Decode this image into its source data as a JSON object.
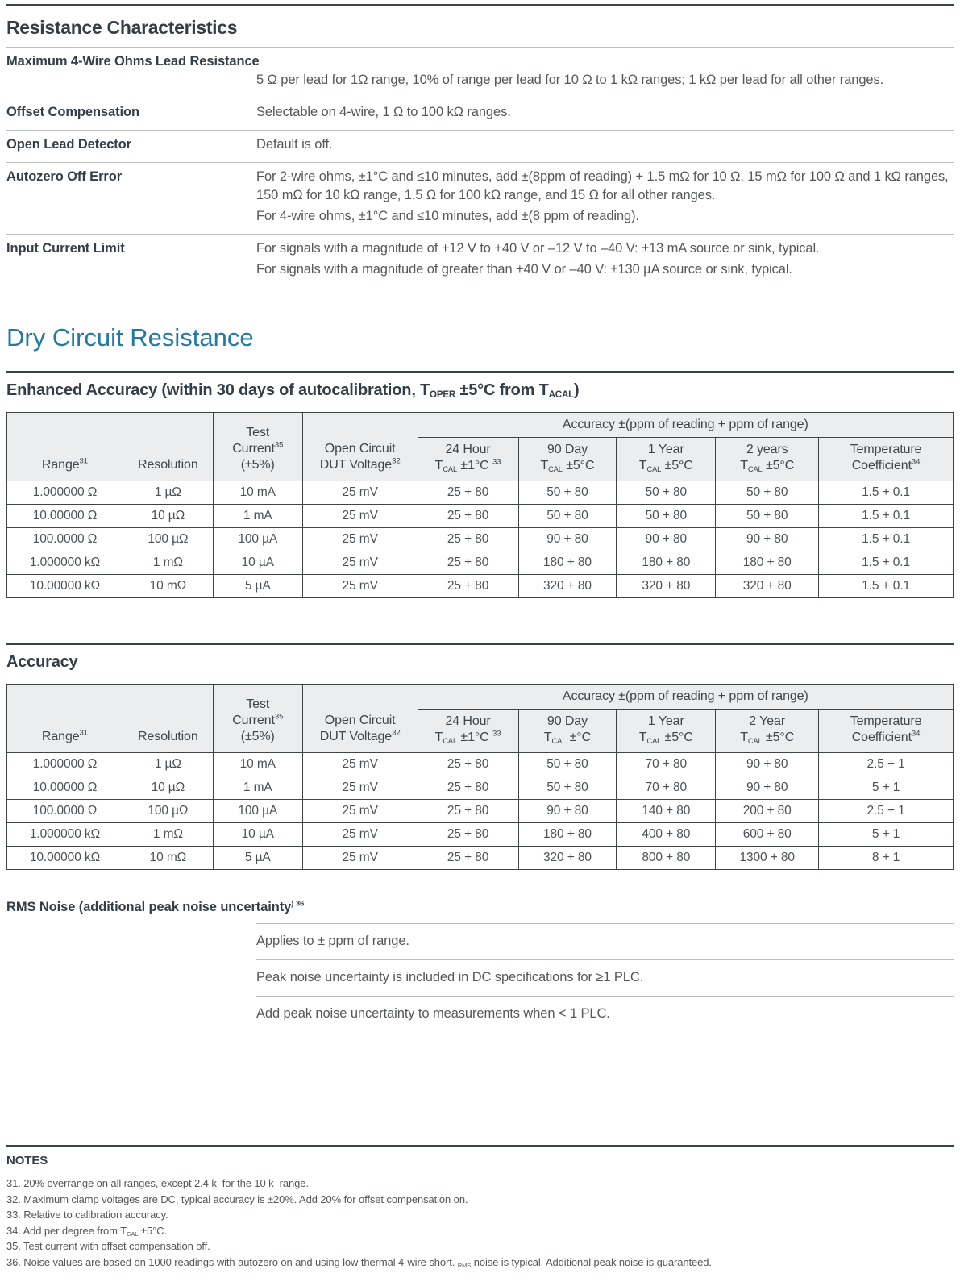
{
  "colors": {
    "accent": "#2279A5",
    "heading": "#333E48",
    "text": "#54585A",
    "rule_dark": "#3A4348",
    "rule_light": "#BCBEC0",
    "table_border": "#3F4447",
    "header_bg": "#ECEDEE"
  },
  "spec_list": {
    "heading": "Resistance Characteristics",
    "rows": [
      {
        "label": "Maximum 4-Wire Ohms Lead Resistance",
        "wide_label": true,
        "paragraphs": [
          "5 Ω per lead for 1Ω range, 10% of range per lead for 10 Ω to 1 kΩ ranges; 1 kΩ per lead for all other ranges."
        ]
      },
      {
        "label": "Offset Compensation",
        "wide_label": false,
        "paragraphs": [
          "Selectable on 4-wire, 1 Ω to 100 kΩ ranges."
        ]
      },
      {
        "label": "Open Lead Detector",
        "wide_label": false,
        "paragraphs": [
          "Default is off."
        ]
      },
      {
        "label": "Autozero Off Error",
        "wide_label": false,
        "paragraphs": [
          "For 2-wire ohms, ±1°C and ≤10 minutes, add ±(8ppm of reading) + 1.5 mΩ for 10 Ω, 15 mΩ for 100 Ω and 1 kΩ ranges, 150 mΩ for 10 kΩ range, 1.5 Ω for 100 kΩ range, and 15 Ω for all other ranges.",
          "For 4-wire ohms, ±1°C and ≤10 minutes, add ±(8 ppm of reading)."
        ]
      },
      {
        "label": "Input Current Limit",
        "wide_label": false,
        "paragraphs": [
          "For signals with a magnitude of +12 V to +40 V or –12 V to –40 V: ±13 mA source or sink, typical.",
          "For signals with a magnitude of greater than +40 V or –40 V: ±130 µA source or sink, typical."
        ]
      }
    ]
  },
  "dry_circuit": {
    "heading": "Dry Circuit Resistance"
  },
  "tables": [
    {
      "section_heading": [
        {
          "t": "Enhanced Accuracy (within 30 days of autocalibration, T"
        },
        {
          "sub": "OPER"
        },
        {
          "t": " ±5°C from T"
        },
        {
          "sub": "ACAL"
        },
        {
          "t": ")"
        }
      ],
      "accuracy_span_header": "Accuracy ±(ppm of reading + ppm of range)",
      "fixed_headers": [
        [
          {
            "t": "Range"
          },
          {
            "sup": "31"
          }
        ],
        [
          {
            "t": "Resolution"
          }
        ],
        [
          {
            "t": "Test"
          },
          {
            "br": true
          },
          {
            "t": "Current"
          },
          {
            "sup": "35"
          },
          {
            "br": true
          },
          {
            "t": "(±5%)"
          }
        ],
        [
          {
            "t": "Open Circuit"
          },
          {
            "br": true
          },
          {
            "t": "DUT Voltage"
          },
          {
            "sup": "32"
          }
        ]
      ],
      "accuracy_headers": [
        [
          {
            "t": "24 Hour"
          },
          {
            "br": true
          },
          {
            "t": "T"
          },
          {
            "sub": "CAL"
          },
          {
            "t": " ±1°C "
          },
          {
            "sup": "33"
          }
        ],
        [
          {
            "t": "90 Day"
          },
          {
            "br": true
          },
          {
            "t": "T"
          },
          {
            "sub": "CAL"
          },
          {
            "t": " ±5°C"
          }
        ],
        [
          {
            "t": "1 Year"
          },
          {
            "br": true
          },
          {
            "t": "T"
          },
          {
            "sub": "CAL"
          },
          {
            "t": " ±5°C"
          }
        ],
        [
          {
            "t": "2 years"
          },
          {
            "br": true
          },
          {
            "t": "T"
          },
          {
            "sub": "CAL"
          },
          {
            "t": " ±5°C"
          }
        ],
        [
          {
            "t": "Temperature"
          },
          {
            "br": true
          },
          {
            "t": "Coefficient"
          },
          {
            "sup": "34"
          }
        ]
      ],
      "rows": [
        [
          "1.000000 Ω",
          "1 µΩ",
          "10 mA",
          "25 mV",
          "25 + 80",
          "50 + 80",
          "50 + 80",
          "50 + 80",
          "1.5 + 0.1"
        ],
        [
          "10.00000 Ω",
          "10 µΩ",
          "1 mA",
          "25 mV",
          "25 + 80",
          "50 + 80",
          "50 + 80",
          "50 + 80",
          "1.5 + 0.1"
        ],
        [
          "100.0000 Ω",
          "100 µΩ",
          "100 µA",
          "25 mV",
          "25 + 80",
          "90 + 80",
          "90 + 80",
          "90 + 80",
          "1.5 + 0.1"
        ],
        [
          "1.000000 kΩ",
          "1 mΩ",
          "10 µA",
          "25 mV",
          "25 + 80",
          "180 + 80",
          "180 + 80",
          "180 + 80",
          "1.5 + 0.1"
        ],
        [
          "10.00000 kΩ",
          "10 mΩ",
          "5 µA",
          "25 mV",
          "25 + 80",
          "320 + 80",
          "320 + 80",
          "320 + 80",
          "1.5 + 0.1"
        ]
      ]
    },
    {
      "section_heading": [
        {
          "t": "Accuracy"
        }
      ],
      "accuracy_span_header": "Accuracy ±(ppm of reading + ppm of range)",
      "fixed_headers": [
        [
          {
            "t": "Range"
          },
          {
            "sup": "31"
          }
        ],
        [
          {
            "t": "Resolution"
          }
        ],
        [
          {
            "t": "Test"
          },
          {
            "br": true
          },
          {
            "t": "Current"
          },
          {
            "sup": "35"
          },
          {
            "br": true
          },
          {
            "t": "(±5%)"
          }
        ],
        [
          {
            "t": "Open Circuit"
          },
          {
            "br": true
          },
          {
            "t": "DUT Voltage"
          },
          {
            "sup": "32"
          }
        ]
      ],
      "accuracy_headers": [
        [
          {
            "t": "24 Hour"
          },
          {
            "br": true
          },
          {
            "t": "T"
          },
          {
            "sub": "CAL"
          },
          {
            "t": " ±1°C "
          },
          {
            "sup": "33"
          }
        ],
        [
          {
            "t": "90 Day"
          },
          {
            "br": true
          },
          {
            "t": "T"
          },
          {
            "sub": "CAL"
          },
          {
            "t": " ±°C"
          }
        ],
        [
          {
            "t": "1 Year"
          },
          {
            "br": true
          },
          {
            "t": "T"
          },
          {
            "sub": "CAL"
          },
          {
            "t": " ±5°C"
          }
        ],
        [
          {
            "t": "2 Year"
          },
          {
            "br": true
          },
          {
            "t": "T"
          },
          {
            "sub": "CAL"
          },
          {
            "t": " ±5°C"
          }
        ],
        [
          {
            "t": "Temperature"
          },
          {
            "br": true
          },
          {
            "t": "Coefficient"
          },
          {
            "sup": "34"
          }
        ]
      ],
      "rows": [
        [
          "1.000000 Ω",
          "1 µΩ",
          "10 mA",
          "25 mV",
          "25 + 80",
          "50 + 80",
          "70 + 80",
          "90 + 80",
          "2.5 + 1"
        ],
        [
          "10.00000 Ω",
          "10 µΩ",
          "1 mA",
          "25 mV",
          "25 + 80",
          "50 + 80",
          "70 + 80",
          "90 + 80",
          "5 + 1"
        ],
        [
          "100.0000 Ω",
          "100 µΩ",
          "100 µA",
          "25 mV",
          "25 + 80",
          "90 + 80",
          "140 + 80",
          "200 + 80",
          "2.5 + 1"
        ],
        [
          "1.000000 kΩ",
          "1 mΩ",
          "10 µA",
          "25 mV",
          "25 + 80",
          "180 + 80",
          "400 + 80",
          "600 + 80",
          "5 + 1"
        ],
        [
          "10.00000 kΩ",
          "10 mΩ",
          "5 µA",
          "25 mV",
          "25 + 80",
          "320 + 80",
          "800 + 80",
          "1300 + 80",
          "8 + 1"
        ]
      ]
    }
  ],
  "rms_noise": {
    "heading_segments": [
      {
        "t": "RMS Noise (additional peak noise uncertainty"
      },
      {
        "sup": ") 36"
      }
    ],
    "rows": [
      "Applies to ± ppm of range.",
      "Peak noise uncertainty is included in DC specifications for ≥1 PLC.",
      "Add peak noise uncertainty to measurements when < 1 PLC."
    ]
  },
  "notes": {
    "heading": "NOTES",
    "items": [
      [
        {
          "t": "31. 20% overrange on all ranges, except 2.4 k  for the 10 k  range."
        }
      ],
      [
        {
          "t": "32. Maximum clamp voltages are DC, typical accuracy is ±20%. Add 20% for offset compensation on."
        }
      ],
      [
        {
          "t": "33. Relative to calibration accuracy."
        }
      ],
      [
        {
          "t": "34. Add per degree from T"
        },
        {
          "sub": "CAL"
        },
        {
          "t": " ±5°C."
        }
      ],
      [
        {
          "t": "35. Test current with offset compensation off."
        }
      ],
      [
        {
          "t": "36. Noise values are based on 1000 readings with autozero on and using low thermal 4-wire short. "
        },
        {
          "sub": "RMS"
        },
        {
          "t": " noise is typical. Additional peak noise is guaranteed."
        }
      ]
    ]
  }
}
